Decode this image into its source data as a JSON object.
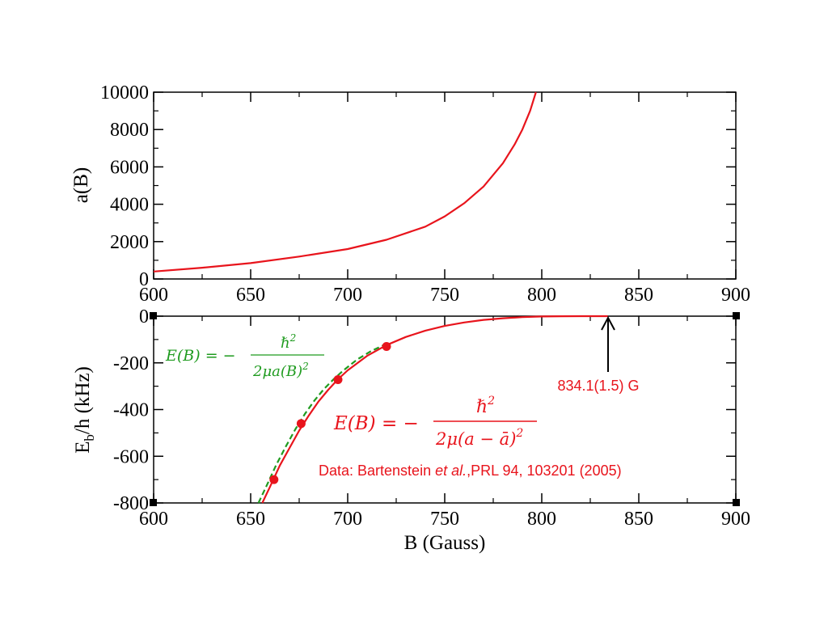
{
  "colors": {
    "red": "#e8141c",
    "green": "#1f9b1f",
    "axis": "#000000"
  },
  "chart_data": [
    {
      "type": "line",
      "title": "",
      "xlabel": "",
      "ylabel": "a(B)",
      "xlim": [
        600,
        900
      ],
      "ylim": [
        0,
        10000
      ],
      "x_ticks": [
        600,
        650,
        700,
        750,
        800,
        850,
        900
      ],
      "y_ticks": [
        0,
        2000,
        4000,
        6000,
        8000,
        10000
      ],
      "grid": false,
      "series": [
        {
          "color": "#e8141c",
          "x": [
            600,
            625,
            650,
            675,
            700,
            720,
            740,
            750,
            760,
            770,
            780,
            786,
            790,
            794,
            797
          ],
          "y": [
            400,
            600,
            850,
            1200,
            1600,
            2100,
            2800,
            3350,
            4050,
            4950,
            6200,
            7200,
            8000,
            9000,
            10000
          ]
        }
      ]
    },
    {
      "type": "line",
      "title": "",
      "xlabel": "B (Gauss)",
      "ylabel": "E_b/h (kHz)",
      "ylabel_main": "E",
      "ylabel_sub": "b",
      "ylabel_rest": "/h (kHz)",
      "xlim": [
        600,
        900
      ],
      "ylim": [
        -800,
        0
      ],
      "x_ticks": [
        600,
        650,
        700,
        750,
        800,
        850,
        900
      ],
      "y_ticks": [
        0,
        -200,
        -400,
        -600,
        -800
      ],
      "grid": false,
      "series": [
        {
          "color": "#e8141c",
          "style": "solid",
          "x": [
            656,
            660,
            665,
            670,
            675,
            680,
            685,
            690,
            695,
            700,
            710,
            720,
            730,
            740,
            750,
            760,
            770,
            780,
            790,
            800,
            810,
            820,
            834
          ],
          "y": [
            -800,
            -730,
            -640,
            -565,
            -490,
            -425,
            -365,
            -315,
            -270,
            -232,
            -170,
            -124,
            -89,
            -62,
            -42,
            -27,
            -16,
            -9,
            -4,
            -1.5,
            -0.5,
            0,
            0
          ]
        },
        {
          "color": "#1f9b1f",
          "style": "dashed",
          "x": [
            654,
            658,
            663,
            668,
            673,
            678,
            683,
            688,
            693,
            698,
            705,
            712,
            720
          ],
          "y": [
            -800,
            -730,
            -640,
            -560,
            -485,
            -418,
            -360,
            -310,
            -268,
            -231,
            -185,
            -150,
            -118
          ]
        },
        {
          "color": "#e8141c",
          "style": "markers",
          "x": [
            662,
            676,
            695,
            720
          ],
          "y": [
            -700,
            -460,
            -272,
            -130
          ]
        }
      ],
      "annotations": {
        "arrow_label": "834.1(1.5) G",
        "arrow_x": 834,
        "formula_green": "E(B) = −ℏ²/2μa(B)²",
        "formula_red": "E(B) = −ℏ²/2μ(a − ā)²",
        "data_source_prefix": "Data: Bartenstein ",
        "data_source_italic": "et al.",
        "data_source_suffix": ",PRL 94, 103201 (2005)"
      }
    }
  ]
}
